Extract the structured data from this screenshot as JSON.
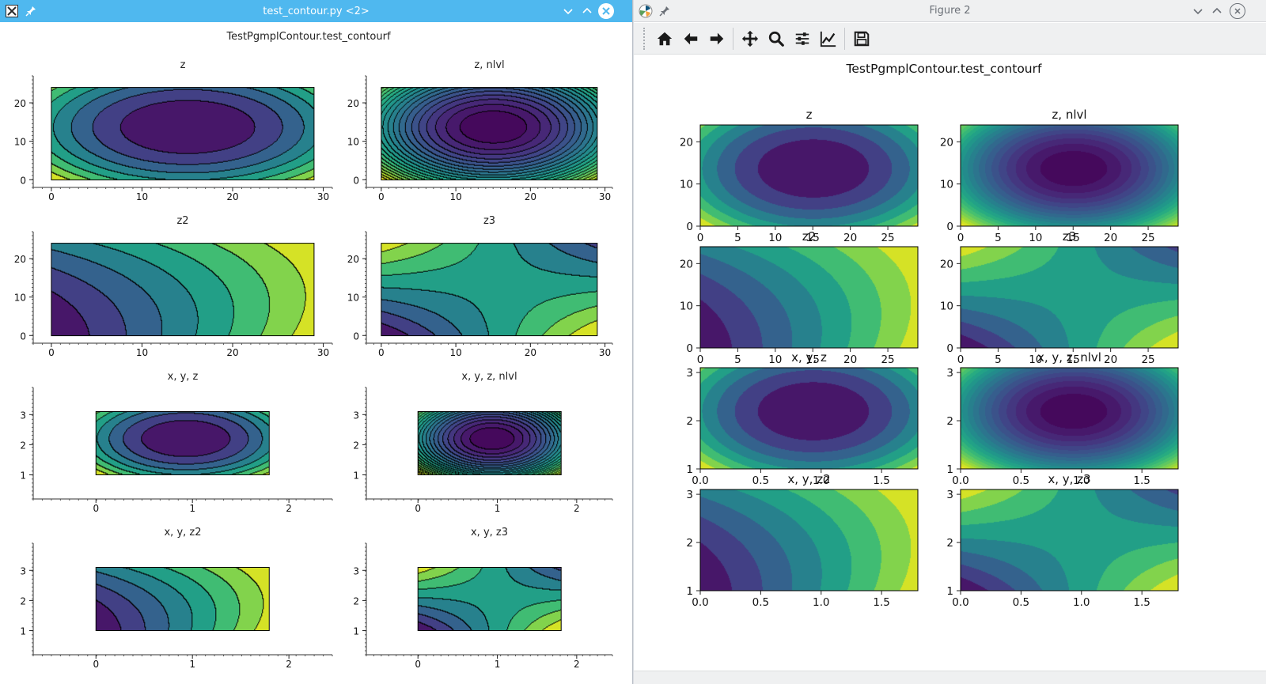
{
  "left_window": {
    "title": "test_contour.py <2>",
    "app_icon": "x-icon",
    "suptitle": "TestPgmplContour.test_contourf",
    "controls": [
      "minimize-icon",
      "maximize-icon",
      "close-icon"
    ]
  },
  "right_window": {
    "title": "Figure 2",
    "app_icon": "matplotlib-icon",
    "suptitle": "TestPgmplContour.test_contourf",
    "controls": [
      "minimize-icon",
      "maximize-icon",
      "close-icon"
    ],
    "toolbar": [
      "home-icon",
      "back-icon",
      "forward-icon",
      "pan-icon",
      "zoom-icon",
      "configure-subplots-icon",
      "edit-axes-icon",
      "save-icon"
    ]
  },
  "colors": {
    "left_titlebar": "#4fb8ef",
    "viridis": [
      "#440154",
      "#482475",
      "#414487",
      "#355f8d",
      "#2a788e",
      "#21918c",
      "#22a884",
      "#44bf70",
      "#7ad151",
      "#bddf26",
      "#fde725"
    ]
  },
  "chart_data": [
    {
      "type": "heatmap",
      "window": "left",
      "title": "z",
      "function": "z",
      "levels": 8,
      "outlined": true,
      "xlim": [
        -2,
        31
      ],
      "ylim": [
        -2,
        27
      ],
      "data_x": [
        0,
        29
      ],
      "data_y": [
        0,
        24
      ],
      "xticks": [
        0,
        10,
        20,
        30
      ],
      "yticks": [
        0,
        10,
        20
      ]
    },
    {
      "type": "heatmap",
      "window": "left",
      "title": "z, nlvl",
      "function": "z",
      "levels": 22,
      "outlined": true,
      "xlim": [
        -2,
        31
      ],
      "ylim": [
        -2,
        27
      ],
      "data_x": [
        0,
        29
      ],
      "data_y": [
        0,
        24
      ],
      "xticks": [
        0,
        10,
        20,
        30
      ],
      "yticks": [
        0,
        10,
        20
      ]
    },
    {
      "type": "heatmap",
      "window": "left",
      "title": "z2",
      "function": "z2",
      "levels": 8,
      "outlined": true,
      "xlim": [
        -2,
        31
      ],
      "ylim": [
        -2,
        27
      ],
      "data_x": [
        0,
        29
      ],
      "data_y": [
        0,
        24
      ],
      "xticks": [
        0,
        10,
        20,
        30
      ],
      "yticks": [
        0,
        10,
        20
      ]
    },
    {
      "type": "heatmap",
      "window": "left",
      "title": "z3",
      "function": "z3",
      "levels": 8,
      "outlined": true,
      "xlim": [
        -2,
        31
      ],
      "ylim": [
        -2,
        27
      ],
      "data_x": [
        0,
        29
      ],
      "data_y": [
        0,
        24
      ],
      "xticks": [
        0,
        10,
        20,
        30
      ],
      "yticks": [
        0,
        10,
        20
      ]
    },
    {
      "type": "heatmap",
      "window": "left",
      "title": "x, y, z",
      "function": "z",
      "levels": 8,
      "outlined": true,
      "xlim": [
        -0.65,
        2.45
      ],
      "ylim": [
        0.2,
        3.9
      ],
      "data_x": [
        0,
        1.8
      ],
      "data_y": [
        1,
        3.1
      ],
      "xticks": [
        0,
        1,
        2
      ],
      "yticks": [
        1,
        2,
        3
      ]
    },
    {
      "type": "heatmap",
      "window": "left",
      "title": "x, y, z, nlvl",
      "function": "z",
      "levels": 22,
      "outlined": true,
      "xlim": [
        -0.65,
        2.45
      ],
      "ylim": [
        0.2,
        3.9
      ],
      "data_x": [
        0,
        1.8
      ],
      "data_y": [
        1,
        3.1
      ],
      "xticks": [
        0,
        1,
        2
      ],
      "yticks": [
        1,
        2,
        3
      ]
    },
    {
      "type": "heatmap",
      "window": "left",
      "title": "x, y, z2",
      "function": "z2",
      "levels": 8,
      "outlined": true,
      "xlim": [
        -0.65,
        2.45
      ],
      "ylim": [
        0.2,
        3.9
      ],
      "data_x": [
        0,
        1.8
      ],
      "data_y": [
        1,
        3.1
      ],
      "xticks": [
        0,
        1,
        2
      ],
      "yticks": [
        1,
        2,
        3
      ]
    },
    {
      "type": "heatmap",
      "window": "left",
      "title": "x, y, z3",
      "function": "z3",
      "levels": 8,
      "outlined": true,
      "xlim": [
        -0.65,
        2.45
      ],
      "ylim": [
        0.2,
        3.9
      ],
      "data_x": [
        0,
        1.8
      ],
      "data_y": [
        1,
        3.1
      ],
      "xticks": [
        0,
        1,
        2
      ],
      "yticks": [
        1,
        2,
        3
      ]
    },
    {
      "type": "heatmap",
      "window": "right",
      "title": "z",
      "function": "z",
      "levels": 8,
      "outlined": false,
      "xlim": [
        0,
        29
      ],
      "ylim": [
        0,
        24
      ],
      "data_x": [
        0,
        29
      ],
      "data_y": [
        0,
        24
      ],
      "xticks": [
        0,
        5,
        10,
        15,
        20,
        25
      ],
      "yticks": [
        0,
        10,
        20
      ]
    },
    {
      "type": "heatmap",
      "window": "right",
      "title": "z, nlvl",
      "function": "z",
      "levels": 22,
      "outlined": false,
      "xlim": [
        0,
        29
      ],
      "ylim": [
        0,
        24
      ],
      "data_x": [
        0,
        29
      ],
      "data_y": [
        0,
        24
      ],
      "xticks": [
        0,
        5,
        10,
        15,
        20,
        25
      ],
      "yticks": [
        0,
        10,
        20
      ]
    },
    {
      "type": "heatmap",
      "window": "right",
      "title": "z2",
      "function": "z2",
      "levels": 8,
      "outlined": false,
      "xlim": [
        0,
        29
      ],
      "ylim": [
        0,
        24
      ],
      "data_x": [
        0,
        29
      ],
      "data_y": [
        0,
        24
      ],
      "xticks": [
        0,
        5,
        10,
        15,
        20,
        25
      ],
      "yticks": [
        0,
        10,
        20
      ]
    },
    {
      "type": "heatmap",
      "window": "right",
      "title": "z3",
      "function": "z3",
      "levels": 8,
      "outlined": false,
      "xlim": [
        0,
        29
      ],
      "ylim": [
        0,
        24
      ],
      "data_x": [
        0,
        29
      ],
      "data_y": [
        0,
        24
      ],
      "xticks": [
        0,
        5,
        10,
        15,
        20,
        25
      ],
      "yticks": [
        0,
        10,
        20
      ]
    },
    {
      "type": "heatmap",
      "window": "right",
      "title": "x, y, z",
      "function": "z",
      "levels": 8,
      "outlined": false,
      "xlim": [
        0,
        1.8
      ],
      "ylim": [
        1,
        3.1
      ],
      "data_x": [
        0,
        1.8
      ],
      "data_y": [
        1,
        3.1
      ],
      "xticks": [
        0.0,
        0.5,
        1.0,
        1.5
      ],
      "yticks": [
        1,
        2,
        3
      ],
      "tick_decimals": 1
    },
    {
      "type": "heatmap",
      "window": "right",
      "title": "x, y, z, nlvl",
      "function": "z",
      "levels": 22,
      "outlined": false,
      "xlim": [
        0,
        1.8
      ],
      "ylim": [
        1,
        3.1
      ],
      "data_x": [
        0,
        1.8
      ],
      "data_y": [
        1,
        3.1
      ],
      "xticks": [
        0.0,
        0.5,
        1.0,
        1.5
      ],
      "yticks": [
        1,
        2,
        3
      ],
      "tick_decimals": 1
    },
    {
      "type": "heatmap",
      "window": "right",
      "title": "x, y, z2",
      "function": "z2",
      "levels": 8,
      "outlined": false,
      "xlim": [
        0,
        1.8
      ],
      "ylim": [
        1,
        3.1
      ],
      "data_x": [
        0,
        1.8
      ],
      "data_y": [
        1,
        3.1
      ],
      "xticks": [
        0.0,
        0.5,
        1.0,
        1.5
      ],
      "yticks": [
        1,
        2,
        3
      ],
      "tick_decimals": 1
    },
    {
      "type": "heatmap",
      "window": "right",
      "title": "x, y, z3",
      "function": "z3",
      "levels": 8,
      "outlined": false,
      "xlim": [
        0,
        1.8
      ],
      "ylim": [
        1,
        3.1
      ],
      "data_x": [
        0,
        1.8
      ],
      "data_y": [
        1,
        3.1
      ],
      "xticks": [
        0.0,
        0.5,
        1.0,
        1.5
      ],
      "yticks": [
        1,
        2,
        3
      ],
      "tick_decimals": 1
    }
  ]
}
